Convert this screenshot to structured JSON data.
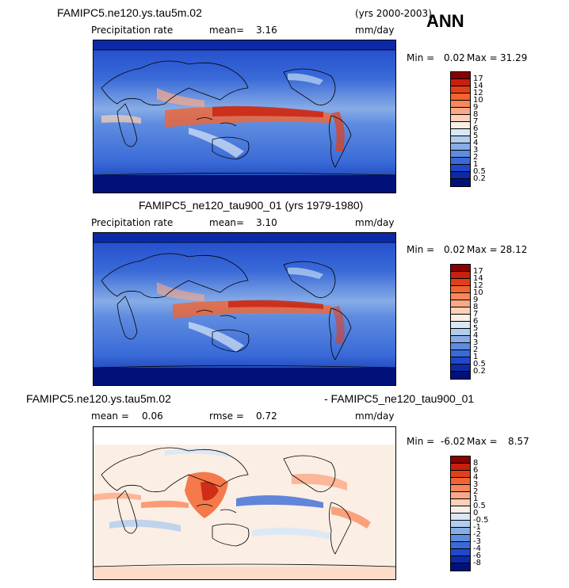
{
  "season": "ANN",
  "panels": [
    {
      "header_left": "FAMIPC5.ne120.ys.tau5m.02",
      "header_right": "(yrs 2000-2003)",
      "variable": "Precipitation rate",
      "stat1_label": "mean=",
      "stat1_value": "3.16",
      "units": "mm/day",
      "min_label": "Min =",
      "min_value": "0.02",
      "max_label": "Max =",
      "max_value": "31.29",
      "levels": [
        "17",
        "14",
        "12",
        "10",
        "9",
        "8",
        "7",
        "6",
        "5",
        "4",
        "3",
        "2",
        "1",
        "0.5",
        "0.2"
      ],
      "colors": [
        "#8b0000",
        "#c8200e",
        "#e2401a",
        "#f26430",
        "#f9875a",
        "#fca886",
        "#fdd0b8",
        "#fbeee4",
        "#d8e8f6",
        "#b0ccef",
        "#87ace6",
        "#5e8ce0",
        "#3a6ad8",
        "#1f48cc",
        "#0c2aa8",
        "#00127a"
      ]
    },
    {
      "header_left": "FAMIPC5_ne120_tau900_01 (yrs 1979-1980)",
      "header_right": "",
      "variable": "Precipitation rate",
      "stat1_label": "mean=",
      "stat1_value": "3.10",
      "units": "mm/day",
      "min_label": "Min =",
      "min_value": "0.02",
      "max_label": "Max =",
      "max_value": "28.12",
      "levels": [
        "17",
        "14",
        "12",
        "10",
        "9",
        "8",
        "7",
        "6",
        "5",
        "4",
        "3",
        "2",
        "1",
        "0.5",
        "0.2"
      ],
      "colors": [
        "#8b0000",
        "#c8200e",
        "#e2401a",
        "#f26430",
        "#f9875a",
        "#fca886",
        "#fdd0b8",
        "#fbeee4",
        "#d8e8f6",
        "#b0ccef",
        "#87ace6",
        "#5e8ce0",
        "#3a6ad8",
        "#1f48cc",
        "#0c2aa8",
        "#00127a"
      ]
    },
    {
      "header_left": "FAMIPC5.ne120.ys.tau5m.02",
      "header_right": "- FAMIPC5_ne120_tau900_01",
      "stat1_label": "mean =",
      "stat1_value": "0.06",
      "stat2_label": "rmse =",
      "stat2_value": "0.72",
      "units": "mm/day",
      "min_label": "Min =",
      "min_value": "-6.02",
      "max_label": "Max =",
      "max_value": "8.57",
      "levels": [
        "8",
        "6",
        "4",
        "3",
        "2",
        "1",
        "0.5",
        "0",
        "-0.5",
        "-1",
        "-2",
        "-3",
        "-4",
        "-6",
        "-8"
      ],
      "colors": [
        "#8b0000",
        "#c8200e",
        "#e2401a",
        "#f26430",
        "#f9875a",
        "#fca886",
        "#fdd0b8",
        "#fbeee4",
        "#d8e8f6",
        "#b0ccef",
        "#87ace6",
        "#5e8ce0",
        "#3a6ad8",
        "#1f48cc",
        "#0c2aa8",
        "#00127a"
      ]
    }
  ]
}
